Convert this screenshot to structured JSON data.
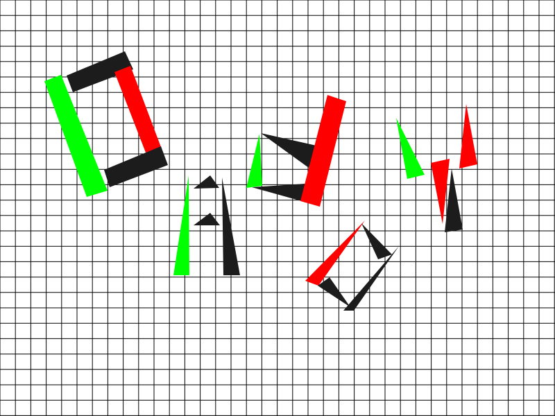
{
  "colors": {
    "background": "#ffffff",
    "grid": "#000000",
    "red": "#ff0000",
    "green": "#00ff00",
    "black": "#1c1c1c"
  },
  "shapes": [
    {
      "name": "green-bar",
      "kind": "bar",
      "color": "green"
    },
    {
      "name": "black-bar-top",
      "kind": "bar",
      "color": "black"
    },
    {
      "name": "red-bar-left-glyph",
      "kind": "bar",
      "color": "red"
    },
    {
      "name": "black-bar-bottom",
      "kind": "bar",
      "color": "black"
    },
    {
      "name": "green-spike-a",
      "kind": "triangle",
      "color": "green"
    },
    {
      "name": "black-notch-upper",
      "kind": "triangle",
      "color": "black"
    },
    {
      "name": "black-notch-lower",
      "kind": "triangle",
      "color": "black"
    },
    {
      "name": "black-spike-a",
      "kind": "triangle",
      "color": "black"
    },
    {
      "name": "green-spike-b",
      "kind": "triangle",
      "color": "green"
    },
    {
      "name": "black-wedge-upper",
      "kind": "triangle",
      "color": "black"
    },
    {
      "name": "black-wedge-lower",
      "kind": "triangle",
      "color": "black"
    },
    {
      "name": "red-bar-center",
      "kind": "bar",
      "color": "red"
    },
    {
      "name": "red-spike-diamond",
      "kind": "triangle",
      "color": "red"
    },
    {
      "name": "black-spike-diamond-a",
      "kind": "triangle",
      "color": "black"
    },
    {
      "name": "black-spike-diamond-b",
      "kind": "triangle",
      "color": "black"
    },
    {
      "name": "black-spike-diamond-c",
      "kind": "triangle",
      "color": "black"
    },
    {
      "name": "green-spike-c",
      "kind": "triangle",
      "color": "green"
    },
    {
      "name": "red-spike-right-a",
      "kind": "triangle",
      "color": "red"
    },
    {
      "name": "red-spike-right-b",
      "kind": "triangle",
      "color": "red"
    },
    {
      "name": "black-spike-right",
      "kind": "triangle",
      "color": "black"
    }
  ]
}
